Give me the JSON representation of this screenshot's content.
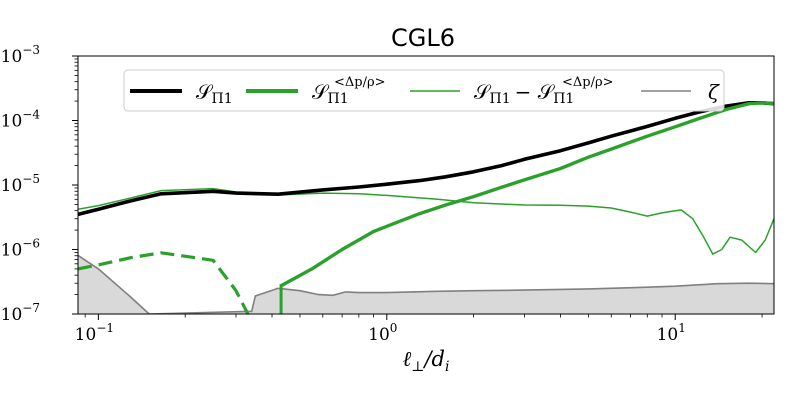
{
  "chart_data": {
    "type": "line",
    "title": "CGL6",
    "xlabel": "ℓ⊥/dᵢ",
    "ylabel": "",
    "xscale": "log",
    "yscale": "log",
    "xlim": [
      0.085,
      22
    ],
    "ylim": [
      1e-07,
      0.001
    ],
    "x_ticks": [
      {
        "value": 0.1,
        "base": "10",
        "exp": "−1"
      },
      {
        "value": 1,
        "base": "10",
        "exp": "0"
      },
      {
        "value": 10,
        "base": "10",
        "exp": "1"
      }
    ],
    "y_ticks": [
      {
        "value": 1e-07,
        "base": "10",
        "exp": "−7"
      },
      {
        "value": 1e-06,
        "base": "10",
        "exp": "−6"
      },
      {
        "value": 1e-05,
        "base": "10",
        "exp": "−5"
      },
      {
        "value": 0.0001,
        "base": "10",
        "exp": "−4"
      },
      {
        "value": 0.001,
        "base": "10",
        "exp": "−3"
      }
    ],
    "legend": {
      "placement": "upper-center",
      "entries": [
        {
          "main": "𝒮",
          "sub": "Π1",
          "sup": ""
        },
        {
          "main": "𝒮",
          "sub": "Π1",
          "sup": "<Δp/ρ>"
        },
        {
          "main": "𝒮",
          "sub": "Π1",
          "sup": "",
          "tail": "− 𝒮",
          "tail_sub": "Π1",
          "tail_sup": "<Δp/ρ>"
        },
        {
          "main": "ζ",
          "sub": "",
          "sup": ""
        }
      ]
    },
    "series": [
      {
        "key": "S_Pi1",
        "color": "#000000",
        "style": "thick",
        "points": [
          [
            0.085,
            3.5e-06
          ],
          [
            0.1,
            4.2e-06
          ],
          [
            0.13,
            5.7e-06
          ],
          [
            0.165,
            7.3e-06
          ],
          [
            0.25,
            8e-06
          ],
          [
            0.3,
            7.5e-06
          ],
          [
            0.42,
            7.2e-06
          ],
          [
            0.6,
            8.4e-06
          ],
          [
            0.8,
            9.3e-06
          ],
          [
            1.0,
            1.03e-05
          ],
          [
            1.3,
            1.17e-05
          ],
          [
            1.6,
            1.34e-05
          ],
          [
            2,
            1.6e-05
          ],
          [
            2.5,
            2e-05
          ],
          [
            3,
            2.5e-05
          ],
          [
            4,
            3.4e-05
          ],
          [
            5,
            4.5e-05
          ],
          [
            6,
            5.7e-05
          ],
          [
            8,
            8.1e-05
          ],
          [
            10,
            0.000108
          ],
          [
            12,
            0.000134
          ],
          [
            15,
            0.000167
          ],
          [
            18,
            0.000188
          ],
          [
            20,
            0.000188
          ],
          [
            22,
            0.000182
          ]
        ]
      },
      {
        "key": "S_Pi1_dp",
        "color": "#2ca02c",
        "style": "thick",
        "points": [
          [
            0.43,
            2.75e-07
          ],
          [
            0.55,
            5e-07
          ],
          [
            0.7,
            1e-06
          ],
          [
            0.9,
            1.9e-06
          ],
          [
            1.1,
            2.7e-06
          ],
          [
            1.3,
            3.6e-06
          ],
          [
            1.6,
            4.9e-06
          ],
          [
            2,
            6.6e-06
          ],
          [
            2.5,
            9.2e-06
          ],
          [
            3,
            1.2e-05
          ],
          [
            4,
            1.8e-05
          ],
          [
            5,
            2.7e-05
          ],
          [
            6,
            3.6e-05
          ],
          [
            8,
            5.7e-05
          ],
          [
            10,
            8e-05
          ],
          [
            12,
            0.000106
          ],
          [
            15,
            0.000148
          ],
          [
            18,
            0.000182
          ],
          [
            20,
            0.000188
          ],
          [
            22,
            0.000182
          ]
        ]
      },
      {
        "key": "S_Pi1_dp_negative",
        "color": "#2ca02c",
        "style": "dashed",
        "points": [
          [
            0.085,
            5e-07
          ],
          [
            0.1,
            5.8e-07
          ],
          [
            0.13,
            7.5e-07
          ],
          [
            0.165,
            8.9e-07
          ],
          [
            0.25,
            6.8e-07
          ],
          [
            0.3,
            2.3e-07
          ],
          [
            0.33,
            1e-07
          ]
        ]
      },
      {
        "key": "S_Pi1_minus_S_Pi1_dp",
        "color": "#2ca02c",
        "style": "thin",
        "points": [
          [
            0.085,
            4.2e-06
          ],
          [
            0.1,
            4.8e-06
          ],
          [
            0.13,
            6.3e-06
          ],
          [
            0.165,
            8.2e-06
          ],
          [
            0.25,
            8.8e-06
          ],
          [
            0.3,
            7.8e-06
          ],
          [
            0.42,
            7e-06
          ],
          [
            0.6,
            7.5e-06
          ],
          [
            0.8,
            7.3e-06
          ],
          [
            1.0,
            6.9e-06
          ],
          [
            1.5,
            6e-06
          ],
          [
            2,
            5.3e-06
          ],
          [
            3,
            4.9e-06
          ],
          [
            4,
            4.85e-06
          ],
          [
            5,
            4.7e-06
          ],
          [
            6,
            4.4e-06
          ],
          [
            7,
            3.8e-06
          ],
          [
            8,
            3.3e-06
          ],
          [
            9,
            3.7e-06
          ],
          [
            10,
            4e-06
          ],
          [
            10.5,
            4.1e-06
          ],
          [
            11.5,
            3e-06
          ],
          [
            12.5,
            1.6e-06
          ],
          [
            13.5,
            8.5e-07
          ],
          [
            14.5,
            1e-06
          ],
          [
            15.5,
            1.55e-06
          ],
          [
            17,
            1.4e-06
          ],
          [
            19,
            9e-07
          ],
          [
            20.5,
            1.4e-06
          ],
          [
            22,
            3e-06
          ]
        ]
      },
      {
        "key": "zeta",
        "color": "#808080",
        "style": "filled",
        "points": [
          [
            0.085,
            8.1e-07
          ],
          [
            0.1,
            5e-07
          ],
          [
            0.13,
            1.8e-07
          ],
          [
            0.15,
            1e-07
          ],
          [
            0.34,
            1.1e-07
          ],
          [
            0.35,
            1.9e-07
          ],
          [
            0.42,
            2.5e-07
          ],
          [
            0.5,
            2.3e-07
          ],
          [
            0.58,
            2e-07
          ],
          [
            0.65,
            1.95e-07
          ],
          [
            0.72,
            2.2e-07
          ],
          [
            0.8,
            2.15e-07
          ],
          [
            1,
            2.15e-07
          ],
          [
            1.5,
            2.25e-07
          ],
          [
            2,
            2.3e-07
          ],
          [
            3,
            2.35e-07
          ],
          [
            5,
            2.45e-07
          ],
          [
            8,
            2.6e-07
          ],
          [
            10,
            2.7e-07
          ],
          [
            14,
            2.95e-07
          ],
          [
            18,
            3e-07
          ],
          [
            22,
            2.95e-07
          ]
        ]
      }
    ],
    "vline": {
      "x": 0.43,
      "ymin": 1e-07,
      "ymax": 2.9e-07,
      "color": "#2ca02c"
    }
  }
}
